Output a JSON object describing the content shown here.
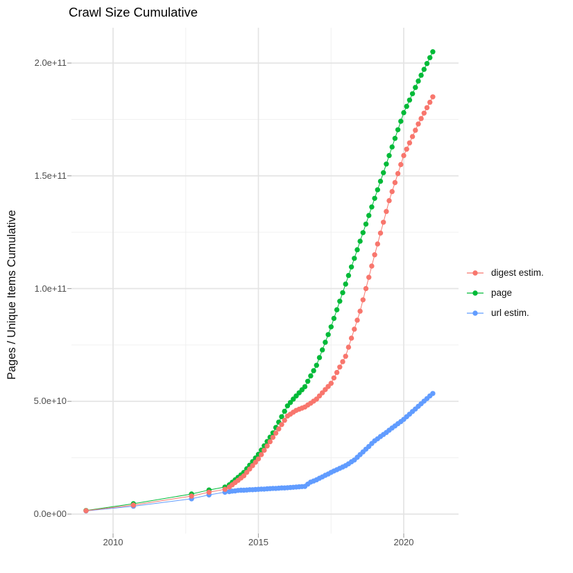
{
  "chart_data": {
    "type": "line",
    "title": "Crawl Size Cumulative",
    "xlabel": "",
    "ylabel": "Pages / Unique Items Cumulative",
    "grid": true,
    "legend_position": "right",
    "xlim": [
      2008.55,
      2021.85
    ],
    "ylim": [
      -8900000000.0,
      215700000000.0
    ],
    "x_ticks": {
      "labels": [
        "2010",
        "2015",
        "2020"
      ],
      "values": [
        2010,
        2015,
        2020
      ]
    },
    "x_minor_ticks": [
      2012.5,
      2017.5
    ],
    "y_ticks": {
      "labels": [
        "0.0e+00",
        "5.0e+10",
        "1.0e+11",
        "1.5e+11",
        "2.0e+11"
      ],
      "values": [
        0,
        50000000000.0,
        100000000000.0,
        150000000000.0,
        200000000000.0
      ]
    },
    "y_minor_ticks": [
      25000000000.0,
      75000000000.0,
      125000000000.0,
      175000000000.0
    ],
    "series": [
      {
        "id": "digest-estim",
        "name": "digest estim.",
        "color": "#F8766D",
        "points": [
          [
            2009.07,
            1500000000.0
          ],
          [
            2010.7,
            4000000000.0
          ],
          [
            2012.7,
            8000000000.0
          ],
          [
            2013.3,
            9700000000.0
          ],
          [
            2013.85,
            11000000000.0
          ],
          [
            2014.0,
            12000000000.0
          ],
          [
            2014.1,
            13000000000.0
          ],
          [
            2014.2,
            14000000000.0
          ],
          [
            2014.3,
            15000000000.0
          ],
          [
            2014.4,
            16000000000.0
          ],
          [
            2014.5,
            17000000000.0
          ],
          [
            2014.6,
            18500000000.0
          ],
          [
            2014.7,
            20000000000.0
          ],
          [
            2014.8,
            21500000000.0
          ],
          [
            2014.9,
            23000000000.0
          ],
          [
            2015.0,
            24500000000.0
          ],
          [
            2015.1,
            26400000000.0
          ],
          [
            2015.2,
            28300000000.0
          ],
          [
            2015.3,
            30200000000.0
          ],
          [
            2015.4,
            32100000000.0
          ],
          [
            2015.5,
            34000000000.0
          ],
          [
            2015.6,
            35900000000.0
          ],
          [
            2015.7,
            37800000000.0
          ],
          [
            2015.8,
            39700000000.0
          ],
          [
            2015.9,
            41600000000.0
          ],
          [
            2016.0,
            43500000000.0
          ],
          [
            2016.1,
            44300000000.0
          ],
          [
            2016.2,
            45200000000.0
          ],
          [
            2016.3,
            46000000000.0
          ],
          [
            2016.4,
            46500000000.0
          ],
          [
            2016.5,
            47000000000.0
          ],
          [
            2016.6,
            47500000000.0
          ],
          [
            2016.7,
            48400000000.0
          ],
          [
            2016.8,
            49200000000.0
          ],
          [
            2016.9,
            50100000000.0
          ],
          [
            2017.0,
            51000000000.0
          ],
          [
            2017.1,
            52400000000.0
          ],
          [
            2017.2,
            53800000000.0
          ],
          [
            2017.3,
            55200000000.0
          ],
          [
            2017.4,
            56600000000.0
          ],
          [
            2017.5,
            58000000000.0
          ],
          [
            2017.6,
            60400000000.0
          ],
          [
            2017.7,
            62800000000.0
          ],
          [
            2017.8,
            65200000000.0
          ],
          [
            2017.9,
            67600000000.0
          ],
          [
            2018.0,
            70000000000.0
          ],
          [
            2018.1,
            74000000000.0
          ],
          [
            2018.2,
            78000000000.0
          ],
          [
            2018.3,
            82000000000.0
          ],
          [
            2018.4,
            86000000000.0
          ],
          [
            2018.5,
            90000000000.0
          ],
          [
            2018.6,
            95000000000.0
          ],
          [
            2018.7,
            100000000000.0
          ],
          [
            2018.8,
            105000000000.0
          ],
          [
            2018.9,
            110000000000.0
          ],
          [
            2019.0,
            115000000000.0
          ],
          [
            2019.1,
            119800000000.0
          ],
          [
            2019.2,
            124600000000.0
          ],
          [
            2019.3,
            129400000000.0
          ],
          [
            2019.4,
            134200000000.0
          ],
          [
            2019.5,
            139000000000.0
          ],
          [
            2019.6,
            143000000000.0
          ],
          [
            2019.7,
            147000000000.0
          ],
          [
            2019.8,
            151000000000.0
          ],
          [
            2019.9,
            155000000000.0
          ],
          [
            2020.0,
            159000000000.0
          ],
          [
            2020.1,
            161800000000.0
          ],
          [
            2020.2,
            164600000000.0
          ],
          [
            2020.3,
            167400000000.0
          ],
          [
            2020.4,
            170200000000.0
          ],
          [
            2020.5,
            173000000000.0
          ],
          [
            2020.6,
            175400000000.0
          ],
          [
            2020.7,
            177800000000.0
          ],
          [
            2020.8,
            180200000000.0
          ],
          [
            2020.9,
            182600000000.0
          ],
          [
            2021.0,
            185000000000.0
          ]
        ]
      },
      {
        "id": "page",
        "name": "page",
        "color": "#00BA38",
        "points": [
          [
            2009.07,
            1600000000.0
          ],
          [
            2010.7,
            4600000000.0
          ],
          [
            2012.7,
            8900000000.0
          ],
          [
            2013.3,
            10700000000.0
          ],
          [
            2013.85,
            12000000000.0
          ],
          [
            2014.0,
            13000000000.0
          ],
          [
            2014.1,
            14100000000.0
          ],
          [
            2014.2,
            15200000000.0
          ],
          [
            2014.3,
            16300000000.0
          ],
          [
            2014.4,
            17400000000.0
          ],
          [
            2014.5,
            18500000000.0
          ],
          [
            2014.6,
            20100000000.0
          ],
          [
            2014.7,
            21700000000.0
          ],
          [
            2014.8,
            23300000000.0
          ],
          [
            2014.9,
            24900000000.0
          ],
          [
            2015.0,
            26500000000.0
          ],
          [
            2015.1,
            28400000000.0
          ],
          [
            2015.2,
            30300000000.0
          ],
          [
            2015.3,
            32200000000.0
          ],
          [
            2015.4,
            34100000000.0
          ],
          [
            2015.5,
            36000000000.0
          ],
          [
            2015.6,
            38400000000.0
          ],
          [
            2015.7,
            40800000000.0
          ],
          [
            2015.8,
            43200000000.0
          ],
          [
            2015.9,
            45600000000.0
          ],
          [
            2016.0,
            48000000000.0
          ],
          [
            2016.1,
            49500000000.0
          ],
          [
            2016.2,
            51000000000.0
          ],
          [
            2016.3,
            52400000000.0
          ],
          [
            2016.4,
            53800000000.0
          ],
          [
            2016.5,
            55100000000.0
          ],
          [
            2016.6,
            56500000000.0
          ],
          [
            2016.7,
            58900000000.0
          ],
          [
            2016.8,
            61300000000.0
          ],
          [
            2016.9,
            63600000000.0
          ],
          [
            2017.0,
            66000000000.0
          ],
          [
            2017.1,
            69400000000.0
          ],
          [
            2017.2,
            72800000000.0
          ],
          [
            2017.3,
            76200000000.0
          ],
          [
            2017.4,
            79600000000.0
          ],
          [
            2017.5,
            83000000000.0
          ],
          [
            2017.6,
            86800000000.0
          ],
          [
            2017.7,
            90600000000.0
          ],
          [
            2017.8,
            94400000000.0
          ],
          [
            2017.9,
            98200000000.0
          ],
          [
            2018.0,
            102000000000.0
          ],
          [
            2018.1,
            105800000000.0
          ],
          [
            2018.2,
            109600000000.0
          ],
          [
            2018.3,
            113400000000.0
          ],
          [
            2018.4,
            117200000000.0
          ],
          [
            2018.5,
            121000000000.0
          ],
          [
            2018.6,
            124800000000.0
          ],
          [
            2018.7,
            128600000000.0
          ],
          [
            2018.8,
            132400000000.0
          ],
          [
            2018.9,
            136200000000.0
          ],
          [
            2019.0,
            140000000000.0
          ],
          [
            2019.1,
            143800000000.0
          ],
          [
            2019.2,
            147600000000.0
          ],
          [
            2019.3,
            151400000000.0
          ],
          [
            2019.4,
            155200000000.0
          ],
          [
            2019.5,
            159000000000.0
          ],
          [
            2019.6,
            162800000000.0
          ],
          [
            2019.7,
            166600000000.0
          ],
          [
            2019.8,
            170400000000.0
          ],
          [
            2019.9,
            174200000000.0
          ],
          [
            2020.0,
            178000000000.0
          ],
          [
            2020.1,
            180800000000.0
          ],
          [
            2020.2,
            183600000000.0
          ],
          [
            2020.3,
            186400000000.0
          ],
          [
            2020.4,
            189200000000.0
          ],
          [
            2020.5,
            192000000000.0
          ],
          [
            2020.6,
            194600000000.0
          ],
          [
            2020.7,
            197200000000.0
          ],
          [
            2020.8,
            199800000000.0
          ],
          [
            2020.9,
            202400000000.0
          ],
          [
            2021.0,
            205000000000.0
          ]
        ]
      },
      {
        "id": "url-estim",
        "name": "url estim.",
        "color": "#619CFF",
        "points": [
          [
            2009.07,
            1400000000.0
          ],
          [
            2010.7,
            3500000000.0
          ],
          [
            2012.7,
            6800000000.0
          ],
          [
            2013.3,
            8500000000.0
          ],
          [
            2013.85,
            9700000000.0
          ],
          [
            2014.0,
            10000000000.0
          ],
          [
            2014.1,
            10200000000.0
          ],
          [
            2014.2,
            10300000000.0
          ],
          [
            2014.3,
            10500000000.0
          ],
          [
            2014.4,
            10600000000.0
          ],
          [
            2014.5,
            10600000000.0
          ],
          [
            2014.6,
            10700000000.0
          ],
          [
            2014.7,
            10800000000.0
          ],
          [
            2014.8,
            10800000000.0
          ],
          [
            2014.9,
            10900000000.0
          ],
          [
            2015.0,
            11000000000.0
          ],
          [
            2015.1,
            11100000000.0
          ],
          [
            2015.2,
            11100000000.0
          ],
          [
            2015.3,
            11200000000.0
          ],
          [
            2015.4,
            11300000000.0
          ],
          [
            2015.5,
            11400000000.0
          ],
          [
            2015.6,
            11400000000.0
          ],
          [
            2015.7,
            11500000000.0
          ],
          [
            2015.8,
            11600000000.0
          ],
          [
            2015.9,
            11600000000.0
          ],
          [
            2016.0,
            11700000000.0
          ],
          [
            2016.1,
            11800000000.0
          ],
          [
            2016.2,
            11900000000.0
          ],
          [
            2016.3,
            12000000000.0
          ],
          [
            2016.4,
            12100000000.0
          ],
          [
            2016.5,
            12200000000.0
          ],
          [
            2016.6,
            12300000000.0
          ],
          [
            2016.7,
            13300000000.0
          ],
          [
            2016.8,
            14200000000.0
          ],
          [
            2016.9,
            14700000000.0
          ],
          [
            2017.0,
            15200000000.0
          ],
          [
            2017.1,
            15900000000.0
          ],
          [
            2017.2,
            16500000000.0
          ],
          [
            2017.3,
            17200000000.0
          ],
          [
            2017.4,
            17800000000.0
          ],
          [
            2017.5,
            18500000000.0
          ],
          [
            2017.6,
            19100000000.0
          ],
          [
            2017.7,
            19700000000.0
          ],
          [
            2017.8,
            20300000000.0
          ],
          [
            2017.9,
            20900000000.0
          ],
          [
            2018.0,
            21500000000.0
          ],
          [
            2018.1,
            22300000000.0
          ],
          [
            2018.2,
            23200000000.0
          ],
          [
            2018.3,
            24000000000.0
          ],
          [
            2018.4,
            25200000000.0
          ],
          [
            2018.5,
            26400000000.0
          ],
          [
            2018.6,
            27600000000.0
          ],
          [
            2018.7,
            28800000000.0
          ],
          [
            2018.8,
            30000000000.0
          ],
          [
            2018.9,
            31300000000.0
          ],
          [
            2019.0,
            32500000000.0
          ],
          [
            2019.1,
            33400000000.0
          ],
          [
            2019.2,
            34400000000.0
          ],
          [
            2019.3,
            35300000000.0
          ],
          [
            2019.4,
            36200000000.0
          ],
          [
            2019.5,
            37200000000.0
          ],
          [
            2019.6,
            38200000000.0
          ],
          [
            2019.7,
            39100000000.0
          ],
          [
            2019.8,
            40100000000.0
          ],
          [
            2019.9,
            41000000000.0
          ],
          [
            2020.0,
            42000000000.0
          ],
          [
            2020.1,
            43200000000.0
          ],
          [
            2020.2,
            44300000000.0
          ],
          [
            2020.3,
            45500000000.0
          ],
          [
            2020.4,
            46600000000.0
          ],
          [
            2020.5,
            47800000000.0
          ],
          [
            2020.6,
            48900000000.0
          ],
          [
            2020.7,
            50100000000.0
          ],
          [
            2020.8,
            51200000000.0
          ],
          [
            2020.9,
            52400000000.0
          ],
          [
            2021.0,
            53500000000.0
          ]
        ]
      }
    ]
  }
}
